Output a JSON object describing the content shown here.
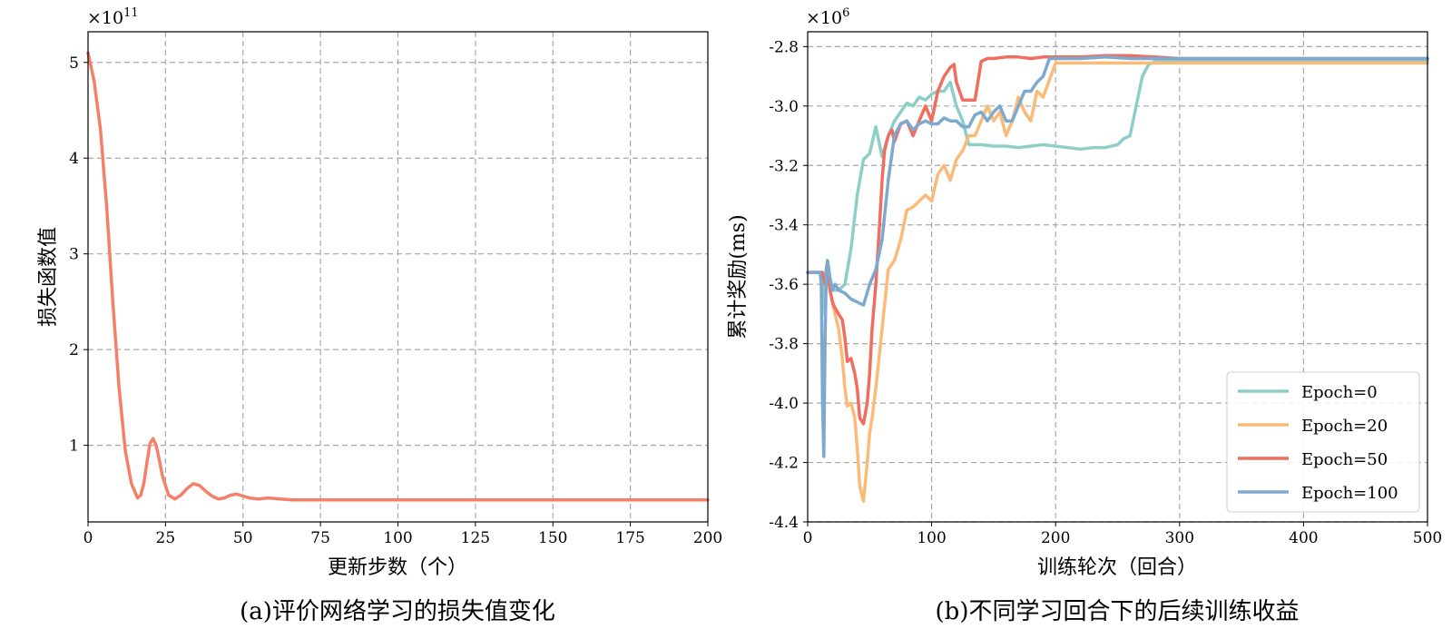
{
  "figure": {
    "caption_a": "(a)评价网络学习的损失值变化",
    "caption_b": "(b)不同学习回合下的后续训练收益"
  },
  "chart_data": [
    {
      "type": "line",
      "xlabel": "更新步数（个）",
      "ylabel": "损失函数值",
      "y_multiplier": "×10",
      "y_multiplier_exp": "11",
      "xlim": [
        0,
        200
      ],
      "ylim": [
        0.2,
        5.32
      ],
      "xticks": [
        0,
        25,
        50,
        75,
        100,
        125,
        150,
        175,
        200
      ],
      "yticks": [
        1,
        2,
        3,
        4,
        5
      ],
      "grid": true,
      "series": [
        {
          "color": "#f4806a",
          "x": [
            0,
            2,
            4,
            6,
            8,
            10,
            12,
            14,
            16,
            17,
            18,
            19,
            20,
            21,
            22,
            23,
            24,
            26,
            28,
            30,
            32,
            34,
            36,
            38,
            40,
            42,
            44,
            46,
            48,
            50,
            52,
            55,
            58,
            62,
            66,
            70,
            80,
            100,
            120,
            150,
            200
          ],
          "y": [
            5.1,
            4.8,
            4.3,
            3.5,
            2.5,
            1.6,
            0.95,
            0.6,
            0.45,
            0.48,
            0.6,
            0.82,
            1.02,
            1.07,
            1.0,
            0.85,
            0.68,
            0.48,
            0.44,
            0.48,
            0.55,
            0.6,
            0.58,
            0.52,
            0.47,
            0.44,
            0.45,
            0.48,
            0.49,
            0.47,
            0.45,
            0.44,
            0.45,
            0.44,
            0.43,
            0.43,
            0.43,
            0.43,
            0.43,
            0.43,
            0.43
          ]
        }
      ]
    },
    {
      "type": "line",
      "xlabel": "训练轮次（回合）",
      "ylabel": "累计奖励(ms)",
      "y_multiplier": "×10",
      "y_multiplier_exp": "6",
      "xlim": [
        0,
        500
      ],
      "ylim": [
        -4.4,
        -2.75
      ],
      "xticks": [
        0,
        100,
        200,
        300,
        400,
        500
      ],
      "yticks": [
        -2.8,
        -3.0,
        -3.2,
        -3.4,
        -3.6,
        -3.8,
        -4.0,
        -4.2,
        -4.4
      ],
      "ytick_labels": [
        "-2.8",
        "-3.0",
        "-3.2",
        "-3.4",
        "-3.6",
        "-3.8",
        "-4.0",
        "-4.2",
        "-4.4"
      ],
      "grid": true,
      "legend_position": "lower-right",
      "series": [
        {
          "name": "Epoch=0",
          "color": "#8dcfc6",
          "x": [
            0,
            12,
            13,
            14,
            15,
            16,
            18,
            20,
            25,
            30,
            35,
            40,
            45,
            50,
            55,
            60,
            65,
            70,
            75,
            80,
            85,
            90,
            95,
            100,
            105,
            110,
            115,
            120,
            125,
            130,
            135,
            140,
            150,
            160,
            170,
            180,
            190,
            200,
            210,
            220,
            230,
            240,
            250,
            255,
            260,
            265,
            270,
            275,
            280,
            300,
            350,
            400,
            450,
            500
          ],
          "y": [
            -3.56,
            -3.56,
            -3.6,
            -3.7,
            -3.56,
            -3.52,
            -3.58,
            -3.62,
            -3.62,
            -3.6,
            -3.48,
            -3.3,
            -3.18,
            -3.16,
            -3.07,
            -3.17,
            -3.1,
            -3.05,
            -3.02,
            -2.99,
            -3.0,
            -2.97,
            -2.98,
            -2.96,
            -2.95,
            -2.95,
            -2.92,
            -3.0,
            -3.05,
            -3.13,
            -3.13,
            -3.13,
            -3.135,
            -3.135,
            -3.14,
            -3.135,
            -3.13,
            -3.135,
            -3.14,
            -3.145,
            -3.14,
            -3.14,
            -3.13,
            -3.11,
            -3.1,
            -3.0,
            -2.9,
            -2.86,
            -2.85,
            -2.845,
            -2.845,
            -2.845,
            -2.845,
            -2.845
          ]
        },
        {
          "name": "Epoch=20",
          "color": "#fbbb78",
          "x": [
            0,
            12,
            14,
            16,
            18,
            20,
            22,
            25,
            28,
            30,
            32,
            35,
            38,
            40,
            42,
            45,
            48,
            50,
            52,
            55,
            60,
            65,
            70,
            75,
            80,
            85,
            90,
            95,
            100,
            105,
            110,
            115,
            120,
            125,
            130,
            135,
            140,
            145,
            150,
            155,
            160,
            165,
            170,
            175,
            180,
            185,
            190,
            200,
            220,
            240,
            260,
            280,
            300,
            400,
            500
          ],
          "y": [
            -3.56,
            -3.56,
            -3.6,
            -3.56,
            -3.62,
            -3.66,
            -3.7,
            -3.75,
            -3.85,
            -3.95,
            -4.01,
            -4.0,
            -4.05,
            -4.15,
            -4.28,
            -4.33,
            -4.2,
            -4.1,
            -4.05,
            -3.95,
            -3.75,
            -3.55,
            -3.52,
            -3.45,
            -3.35,
            -3.34,
            -3.32,
            -3.3,
            -3.32,
            -3.23,
            -3.2,
            -3.25,
            -3.18,
            -3.15,
            -3.1,
            -3.1,
            -3.05,
            -3.0,
            -3.05,
            -3.02,
            -3.1,
            -3.05,
            -2.97,
            -3.02,
            -3.05,
            -2.95,
            -2.97,
            -2.855,
            -2.855,
            -2.855,
            -2.855,
            -2.855,
            -2.855,
            -2.855,
            -2.855
          ]
        },
        {
          "name": "Epoch=50",
          "color": "#f06e60",
          "x": [
            0,
            12,
            14,
            16,
            18,
            20,
            22,
            25,
            28,
            30,
            32,
            35,
            38,
            40,
            42,
            45,
            48,
            50,
            52,
            55,
            58,
            60,
            62,
            65,
            68,
            70,
            75,
            80,
            85,
            90,
            95,
            100,
            105,
            110,
            115,
            118,
            120,
            125,
            130,
            135,
            140,
            145,
            150,
            160,
            170,
            180,
            190,
            200,
            220,
            240,
            260,
            280,
            300,
            400,
            500
          ],
          "y": [
            -3.56,
            -3.56,
            -3.6,
            -3.55,
            -3.62,
            -3.66,
            -3.68,
            -3.7,
            -3.72,
            -3.78,
            -3.86,
            -3.85,
            -3.9,
            -3.95,
            -4.05,
            -4.07,
            -4.0,
            -3.9,
            -3.75,
            -3.6,
            -3.4,
            -3.25,
            -3.15,
            -3.1,
            -3.08,
            -3.12,
            -3.06,
            -3.05,
            -3.1,
            -3.05,
            -3.0,
            -3.05,
            -2.95,
            -2.9,
            -2.87,
            -2.86,
            -2.92,
            -2.98,
            -2.98,
            -2.98,
            -2.85,
            -2.84,
            -2.84,
            -2.835,
            -2.835,
            -2.84,
            -2.835,
            -2.835,
            -2.835,
            -2.83,
            -2.83,
            -2.835,
            -2.84,
            -2.84,
            -2.84
          ]
        },
        {
          "name": "Epoch=100",
          "color": "#7ea9cf",
          "x": [
            0,
            10,
            11,
            12,
            13,
            14,
            15,
            16,
            18,
            20,
            22,
            25,
            30,
            35,
            40,
            45,
            50,
            55,
            60,
            65,
            70,
            75,
            80,
            85,
            90,
            95,
            100,
            105,
            110,
            115,
            120,
            125,
            130,
            135,
            140,
            145,
            150,
            155,
            160,
            165,
            170,
            175,
            180,
            185,
            190,
            195,
            200,
            220,
            240,
            260,
            280,
            300,
            400,
            500
          ],
          "y": [
            -3.56,
            -3.56,
            -3.6,
            -4.0,
            -4.18,
            -3.8,
            -3.55,
            -3.52,
            -3.58,
            -3.62,
            -3.6,
            -3.62,
            -3.63,
            -3.65,
            -3.66,
            -3.67,
            -3.6,
            -3.55,
            -3.45,
            -3.25,
            -3.1,
            -3.06,
            -3.05,
            -3.08,
            -3.06,
            -3.05,
            -3.06,
            -3.06,
            -3.04,
            -3.05,
            -3.05,
            -3.07,
            -3.07,
            -3.03,
            -3.02,
            -3.05,
            -3.02,
            -3.0,
            -3.05,
            -3.05,
            -3.0,
            -2.95,
            -2.95,
            -2.92,
            -2.9,
            -2.84,
            -2.84,
            -2.84,
            -2.835,
            -2.84,
            -2.84,
            -2.84,
            -2.84,
            -2.84
          ]
        }
      ]
    }
  ]
}
